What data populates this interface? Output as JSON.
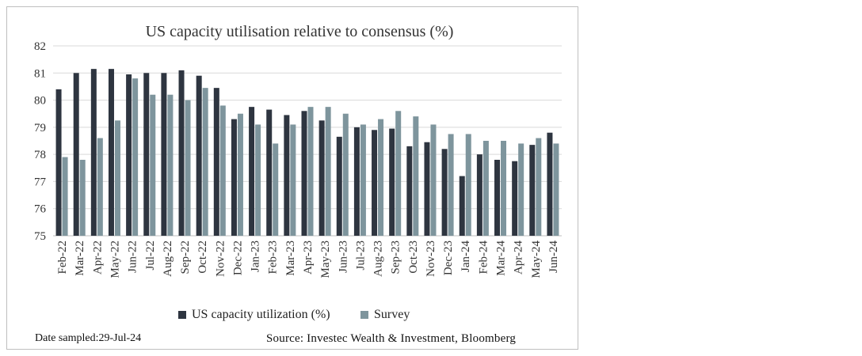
{
  "chart_data": {
    "type": "bar",
    "title": "US capacity utilisation relative to consensus (%)",
    "xlabel": "",
    "ylabel": "",
    "ylim": [
      75,
      82
    ],
    "yticks": [
      75,
      76,
      77,
      78,
      79,
      80,
      81,
      82
    ],
    "grid": true,
    "legend_position": "bottom",
    "categories": [
      "Feb-22",
      "Mar-22",
      "Apr-22",
      "May-22",
      "Jun-22",
      "Jul-22",
      "Aug-22",
      "Sep-22",
      "Oct-22",
      "Nov-22",
      "Dec-22",
      "Jan-23",
      "Feb-23",
      "Mar-23",
      "Apr-23",
      "May-23",
      "Jun-23",
      "Jul-23",
      "Aug-23",
      "Sep-23",
      "Oct-23",
      "Nov-23",
      "Dec-23",
      "Jan-24",
      "Feb-24",
      "Mar-24",
      "Apr-24",
      "May-24",
      "Jun-24"
    ],
    "series": [
      {
        "name": "US capacity utilization (%)",
        "color": "#2e3540",
        "values": [
          80.4,
          81.0,
          81.15,
          81.15,
          80.95,
          81.0,
          81.0,
          81.1,
          80.9,
          80.45,
          79.3,
          79.75,
          79.65,
          79.45,
          79.6,
          79.25,
          78.65,
          79.0,
          78.9,
          78.95,
          78.3,
          78.45,
          78.2,
          77.2,
          78.0,
          77.8,
          77.75,
          78.35,
          78.8
        ]
      },
      {
        "name": "Survey",
        "color": "#7e959d",
        "values": [
          77.9,
          77.8,
          78.6,
          79.25,
          80.8,
          80.2,
          80.2,
          80.0,
          80.45,
          79.8,
          79.5,
          79.1,
          78.4,
          79.1,
          79.75,
          79.75,
          79.5,
          79.1,
          79.3,
          79.6,
          79.4,
          79.1,
          78.75,
          78.75,
          78.5,
          78.5,
          78.4,
          78.6,
          78.4
        ]
      }
    ]
  },
  "footer": {
    "date_sampled": "Date sampled:29-Jul-24",
    "source": "Source: Investec Wealth & Investment, Bloomberg"
  }
}
